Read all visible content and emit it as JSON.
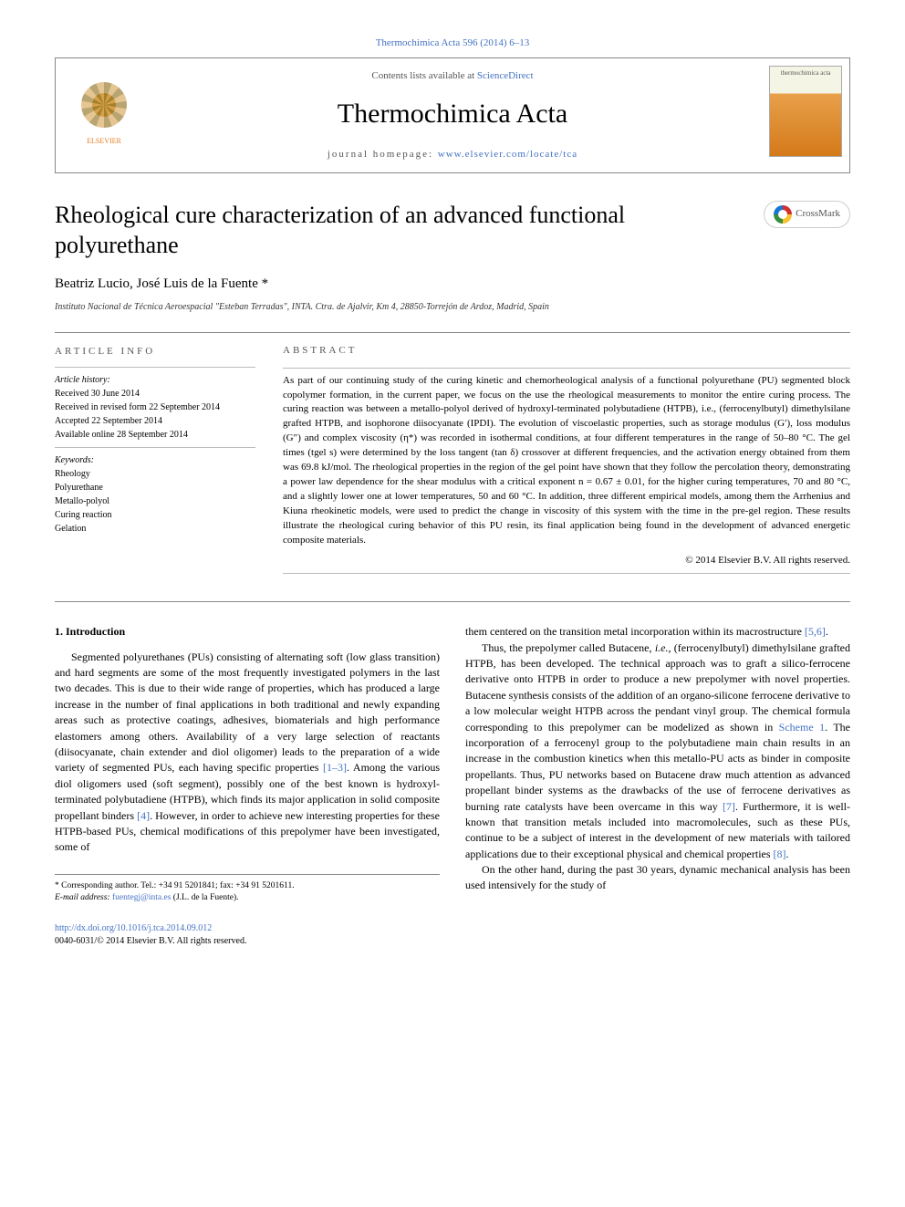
{
  "journal_ref": "Thermochimica Acta 596 (2014) 6–13",
  "header": {
    "contents_prefix": "Contents lists available at ",
    "contents_link": "ScienceDirect",
    "journal_name": "Thermochimica Acta",
    "homepage_prefix": "journal homepage: ",
    "homepage_link": "www.elsevier.com/locate/tca",
    "publisher_name": "ELSEVIER",
    "cover_label": "thermochimica acta"
  },
  "title": "Rheological cure characterization of an advanced functional polyurethane",
  "crossmark_label": "CrossMark",
  "authors": "Beatriz Lucio, José Luis de la Fuente *",
  "affiliation": "Instituto Nacional de Técnica Aeroespacial \"Esteban Terradas\", INTA. Ctra. de Ajalvir, Km 4, 28850-Torrejón de Ardoz, Madrid, Spain",
  "article_info": {
    "heading": "ARTICLE INFO",
    "history_label": "Article history:",
    "received": "Received 30 June 2014",
    "revised": "Received in revised form 22 September 2014",
    "accepted": "Accepted 22 September 2014",
    "online": "Available online 28 September 2014",
    "keywords_label": "Keywords:",
    "keywords": [
      "Rheology",
      "Polyurethane",
      "Metallo-polyol",
      "Curing reaction",
      "Gelation"
    ]
  },
  "abstract": {
    "heading": "ABSTRACT",
    "text": "As part of our continuing study of the curing kinetic and chemorheological analysis of a functional polyurethane (PU) segmented block copolymer formation, in the current paper, we focus on the use the rheological measurements to monitor the entire curing process. The curing reaction was between a metallo-polyol derived of hydroxyl-terminated polybutadiene (HTPB), i.e., (ferrocenylbutyl) dimethylsilane grafted HTPB, and isophorone diisocyanate (IPDI). The evolution of viscoelastic properties, such as storage modulus (G′), loss modulus (G″) and complex viscosity (η*) was recorded in isothermal conditions, at four different temperatures in the range of 50–80 °C. The gel times (tgel s) were determined by the loss tangent (tan δ) crossover at different frequencies, and the activation energy obtained from them was 69.8 kJ/mol. The rheological properties in the region of the gel point have shown that they follow the percolation theory, demonstrating a power law dependence for the shear modulus with a critical exponent n = 0.67 ± 0.01, for the higher curing temperatures, 70 and 80 °C, and a slightly lower one at lower temperatures, 50 and 60 °C. In addition, three different empirical models, among them the Arrhenius and Kiuna rheokinetic models, were used to predict the change in viscosity of this system with the time in the pre-gel region. These results illustrate the rheological curing behavior of this PU resin, its final application being found in the development of advanced energetic composite materials.",
    "copyright": "© 2014 Elsevier B.V. All rights reserved."
  },
  "body": {
    "section1_heading": "1. Introduction",
    "para1": "Segmented polyurethanes (PUs) consisting of alternating soft (low glass transition) and hard segments are some of the most frequently investigated polymers in the last two decades. This is due to their wide range of properties, which has produced a large increase in the number of final applications in both traditional and newly expanding areas such as protective coatings, adhesives, biomaterials and high performance elastomers among others. Availability of a very large selection of reactants (diisocyanate, chain extender and diol oligomer) leads to the preparation of a wide variety of segmented PUs, each having specific properties ",
    "cite1": "[1–3]",
    "para1b": ". Among the various diol oligomers used (soft segment), possibly one of the best known is hydroxyl-terminated polybutadiene (HTPB), which finds its major application in solid composite propellant binders ",
    "cite2": "[4]",
    "para1c": ". However, in order to achieve new interesting properties for these HTPB-based PUs, chemical modifications of this prepolymer have been investigated, some of",
    "para2a": "them centered on the transition metal incorporation within its macrostructure ",
    "cite3": "[5,6]",
    "para2b": ".",
    "para3a": "Thus, the prepolymer called Butacene, ",
    "ie": "i.e.",
    "para3b": ", (ferrocenylbutyl) dimethylsilane grafted HTPB, has been developed. The technical approach was to graft a silico-ferrocene derivative onto HTPB in order to produce a new prepolymer with novel properties. Butacene synthesis consists of the addition of an organo-silicone ferrocene derivative to a low molecular weight HTPB across the pendant vinyl group. The chemical formula corresponding to this prepolymer can be modelized as shown in ",
    "scheme_ref": "Scheme 1",
    "para3c": ". The incorporation of a ferrocenyl group to the polybutadiene main chain results in an increase in the combustion kinetics when this metallo-PU acts as binder in composite propellants. Thus, PU networks based on Butacene draw much attention as advanced propellant binder systems as the drawbacks of the use of ferrocene derivatives as burning rate catalysts have been overcame in this way ",
    "cite4": "[7]",
    "para3d": ". Furthermore, it is well-known that transition metals included into macromolecules, such as these PUs, continue to be a subject of interest in the development of new materials with tailored applications due to their exceptional physical and chemical properties ",
    "cite5": "[8]",
    "para3e": ".",
    "para4": "On the other hand, during the past 30 years, dynamic mechanical analysis has been used intensively for the study of"
  },
  "footnote": {
    "corr": "* Corresponding author. Tel.: +34 91 5201841; fax: +34 91 5201611.",
    "email_label": "E-mail address: ",
    "email": "fuentegj@inta.es",
    "email_attr": " (J.L. de la Fuente)."
  },
  "doi": {
    "link": "http://dx.doi.org/10.1016/j.tca.2014.09.012",
    "issn_line": "0040-6031/© 2014 Elsevier B.V. All rights reserved."
  },
  "colors": {
    "link": "#4472c4",
    "text": "#000000",
    "muted": "#555555",
    "border": "#888888"
  }
}
